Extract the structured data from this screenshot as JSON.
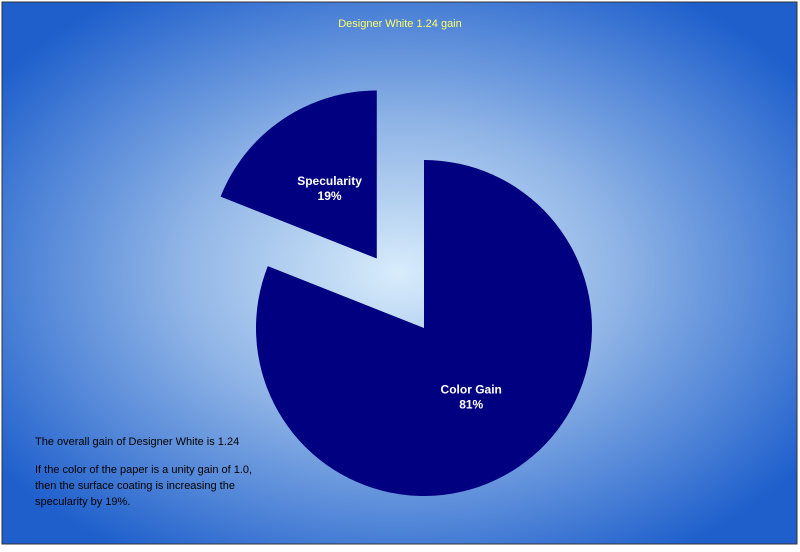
{
  "chart_data": {
    "type": "pie",
    "title": "Designer White 1.24 gain",
    "categories": [
      "Color Gain",
      "Specularity"
    ],
    "values": [
      81,
      19
    ],
    "value_labels": [
      "81%",
      "19%"
    ],
    "color": "#000080",
    "annotations": [
      "The overall gain of Designer White is 1.24",
      "If the color of the paper is a unity gain of 1.0,",
      "then the surface coating is increasing the",
      "specularity by 19%."
    ]
  }
}
